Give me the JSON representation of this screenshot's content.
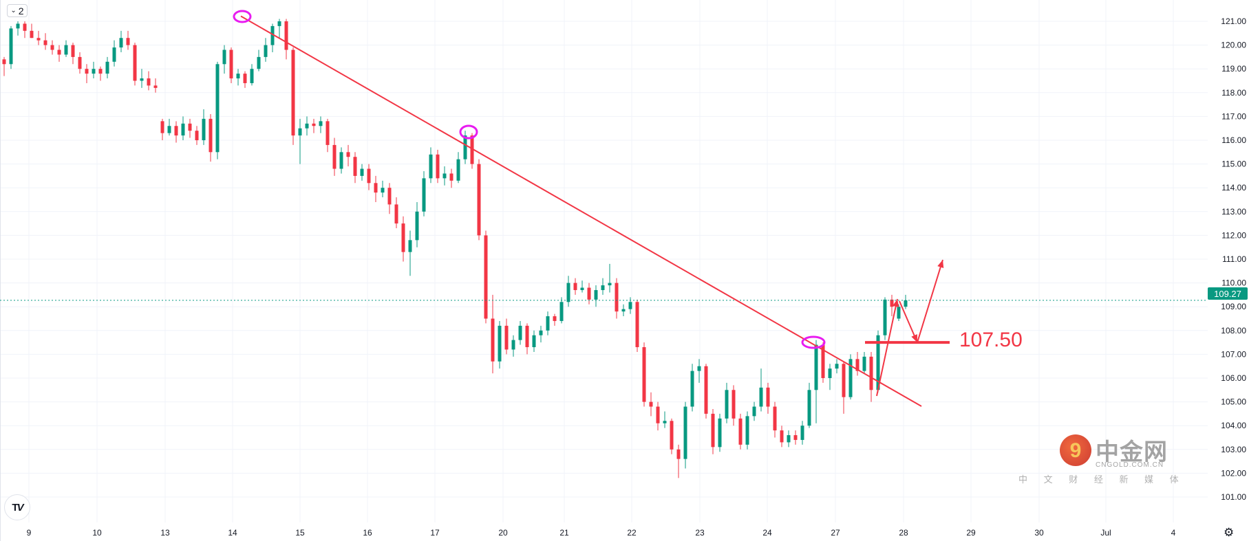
{
  "toolbar": {
    "interval_value": "2",
    "chevron": "chevron-down-icon"
  },
  "colors": {
    "up": "#089981",
    "down": "#f23645",
    "annotation": "#f23645",
    "highlight_ellipse": "#e81cf0",
    "last_price": "#089981",
    "grid": "#f0f3fa"
  },
  "last_price_label": "109.27",
  "annotation_level_label": "107.50",
  "watermark": {
    "brand": "中金网",
    "url": "CNGOLD.COM.CN",
    "tagline": "中 文 财 经 新 媒 体"
  },
  "chart_data": {
    "type": "candlestick",
    "title": "",
    "xlabel": "",
    "ylabel": "",
    "ylim": [
      100.3,
      121.1
    ],
    "grid": true,
    "x_tick_labels": [
      "9",
      "10",
      "13",
      "14",
      "15",
      "16",
      "17",
      "20",
      "21",
      "22",
      "23",
      "24",
      "27",
      "28",
      "29",
      "30",
      "Jul",
      "4"
    ],
    "y_tick_labels": [
      "101.00",
      "102.00",
      "103.00",
      "104.00",
      "105.00",
      "106.00",
      "107.00",
      "108.00",
      "109.00",
      "110.00",
      "111.00",
      "112.00",
      "113.00",
      "114.00",
      "115.00",
      "116.00",
      "117.00",
      "118.00",
      "119.00",
      "120.00",
      "121.00"
    ],
    "last_price": 109.27,
    "ohlc_fields": [
      "open",
      "high",
      "low",
      "close"
    ],
    "ohlc": [
      [
        119.4,
        119.5,
        118.7,
        119.2
      ],
      [
        119.2,
        120.8,
        119.0,
        120.7
      ],
      [
        120.7,
        121.0,
        120.4,
        120.9
      ],
      [
        120.9,
        121.0,
        120.3,
        120.6
      ],
      [
        120.6,
        120.9,
        120.3,
        120.3
      ],
      [
        120.3,
        120.6,
        120.0,
        120.2
      ],
      [
        120.2,
        120.5,
        119.8,
        120.0
      ],
      [
        120.0,
        120.2,
        119.6,
        119.8
      ],
      [
        119.8,
        120.0,
        119.3,
        119.6
      ],
      [
        119.6,
        120.2,
        119.5,
        120.0
      ],
      [
        120.0,
        120.1,
        119.2,
        119.5
      ],
      [
        119.5,
        119.7,
        118.8,
        119.0
      ],
      [
        119.0,
        119.2,
        118.4,
        118.8
      ],
      [
        118.8,
        119.3,
        118.6,
        119.0
      ],
      [
        119.0,
        119.1,
        118.5,
        118.8
      ],
      [
        118.8,
        119.5,
        118.6,
        119.3
      ],
      [
        119.3,
        120.2,
        119.1,
        119.9
      ],
      [
        119.9,
        120.6,
        119.7,
        120.3
      ],
      [
        120.3,
        120.6,
        119.8,
        120.0
      ],
      [
        120.0,
        120.1,
        118.3,
        118.5
      ],
      [
        118.5,
        119.0,
        118.2,
        118.6
      ],
      [
        118.6,
        118.9,
        118.1,
        118.3
      ],
      [
        118.3,
        118.6,
        118.0,
        118.2
      ],
      [
        116.8,
        116.9,
        116.0,
        116.3
      ],
      [
        116.3,
        116.9,
        116.2,
        116.6
      ],
      [
        116.6,
        116.8,
        115.9,
        116.2
      ],
      [
        116.2,
        117.0,
        116.0,
        116.7
      ],
      [
        116.7,
        116.9,
        116.1,
        116.4
      ],
      [
        116.4,
        116.6,
        115.8,
        116.0
      ],
      [
        116.0,
        117.3,
        115.8,
        116.9
      ],
      [
        116.9,
        117.1,
        115.1,
        115.5
      ],
      [
        115.5,
        119.3,
        115.2,
        119.2
      ],
      [
        119.2,
        120.0,
        118.8,
        119.8
      ],
      [
        119.8,
        119.9,
        118.4,
        118.6
      ],
      [
        118.6,
        119.0,
        118.3,
        118.8
      ],
      [
        118.8,
        118.9,
        118.2,
        118.4
      ],
      [
        118.4,
        119.2,
        118.3,
        119.0
      ],
      [
        119.0,
        119.8,
        118.9,
        119.5
      ],
      [
        119.5,
        120.3,
        119.3,
        120.0
      ],
      [
        120.0,
        120.9,
        119.7,
        120.8
      ],
      [
        120.8,
        121.1,
        120.3,
        121.0
      ],
      [
        121.0,
        121.1,
        119.4,
        119.8
      ],
      [
        119.8,
        119.9,
        115.8,
        116.2
      ],
      [
        116.2,
        116.9,
        115.0,
        116.5
      ],
      [
        116.5,
        117.0,
        116.2,
        116.7
      ],
      [
        116.7,
        116.9,
        116.3,
        116.6
      ],
      [
        116.6,
        117.0,
        116.3,
        116.8
      ],
      [
        116.8,
        116.9,
        115.5,
        115.8
      ],
      [
        115.8,
        116.1,
        114.5,
        114.8
      ],
      [
        114.8,
        115.7,
        114.6,
        115.5
      ],
      [
        115.5,
        115.8,
        114.9,
        115.3
      ],
      [
        115.3,
        115.5,
        114.2,
        114.5
      ],
      [
        114.5,
        115.0,
        114.3,
        114.8
      ],
      [
        114.8,
        115.0,
        113.9,
        114.2
      ],
      [
        114.2,
        114.5,
        113.4,
        113.8
      ],
      [
        113.8,
        114.3,
        113.6,
        114.0
      ],
      [
        114.0,
        114.2,
        112.9,
        113.3
      ],
      [
        113.3,
        113.6,
        112.3,
        112.5
      ],
      [
        112.5,
        112.8,
        110.9,
        111.3
      ],
      [
        111.3,
        112.2,
        110.3,
        111.8
      ],
      [
        111.8,
        113.4,
        111.5,
        113.0
      ],
      [
        113.0,
        114.7,
        112.8,
        114.4
      ],
      [
        114.4,
        115.7,
        114.2,
        115.4
      ],
      [
        115.4,
        115.6,
        114.2,
        114.4
      ],
      [
        114.4,
        114.9,
        114.1,
        114.6
      ],
      [
        114.6,
        114.8,
        114.0,
        114.3
      ],
      [
        114.3,
        115.5,
        114.2,
        115.2
      ],
      [
        115.2,
        116.4,
        115.0,
        116.2
      ],
      [
        116.2,
        116.3,
        114.8,
        115.0
      ],
      [
        115.0,
        115.2,
        111.8,
        112.0
      ],
      [
        112.0,
        112.2,
        108.3,
        108.5
      ],
      [
        108.5,
        109.5,
        106.2,
        106.7
      ],
      [
        106.7,
        108.4,
        106.4,
        108.2
      ],
      [
        108.2,
        108.5,
        107.0,
        107.2
      ],
      [
        107.2,
        107.8,
        106.9,
        107.6
      ],
      [
        107.6,
        108.4,
        107.4,
        108.2
      ],
      [
        108.2,
        108.3,
        107.0,
        107.3
      ],
      [
        107.3,
        108.0,
        107.1,
        107.8
      ],
      [
        107.8,
        108.2,
        107.5,
        108.0
      ],
      [
        108.0,
        108.8,
        107.8,
        108.6
      ],
      [
        108.6,
        108.7,
        108.2,
        108.4
      ],
      [
        108.4,
        109.4,
        108.3,
        109.2
      ],
      [
        109.2,
        110.3,
        109.0,
        110.0
      ],
      [
        110.0,
        110.2,
        109.5,
        109.7
      ],
      [
        109.7,
        110.1,
        109.6,
        109.8
      ],
      [
        109.8,
        110.0,
        109.1,
        109.3
      ],
      [
        109.3,
        109.9,
        109.0,
        109.7
      ],
      [
        109.7,
        110.2,
        109.5,
        109.9
      ],
      [
        109.9,
        110.8,
        109.6,
        110.0
      ],
      [
        110.0,
        110.2,
        108.5,
        108.8
      ],
      [
        108.8,
        109.1,
        108.6,
        108.9
      ],
      [
        108.9,
        109.4,
        108.7,
        109.2
      ],
      [
        109.2,
        109.3,
        107.1,
        107.3
      ],
      [
        107.3,
        107.5,
        104.8,
        105.0
      ],
      [
        105.0,
        105.4,
        104.4,
        104.8
      ],
      [
        104.8,
        105.0,
        103.8,
        104.1
      ],
      [
        104.1,
        104.6,
        103.9,
        104.2
      ],
      [
        104.2,
        104.3,
        102.8,
        103.0
      ],
      [
        103.0,
        103.2,
        101.8,
        102.6
      ],
      [
        102.6,
        105.0,
        102.2,
        104.8
      ],
      [
        104.8,
        106.6,
        104.6,
        106.3
      ],
      [
        106.3,
        106.8,
        105.8,
        106.5
      ],
      [
        106.5,
        106.6,
        104.3,
        104.5
      ],
      [
        104.5,
        104.7,
        102.8,
        103.1
      ],
      [
        103.1,
        104.5,
        102.9,
        104.3
      ],
      [
        104.3,
        105.8,
        104.1,
        105.5
      ],
      [
        105.5,
        105.7,
        104.0,
        104.3
      ],
      [
        104.3,
        104.5,
        103.0,
        103.2
      ],
      [
        103.2,
        104.6,
        103.0,
        104.4
      ],
      [
        104.4,
        105.0,
        104.2,
        104.8
      ],
      [
        104.8,
        106.4,
        104.6,
        105.6
      ],
      [
        105.6,
        105.8,
        104.5,
        104.8
      ],
      [
        104.8,
        105.0,
        103.5,
        103.8
      ],
      [
        103.8,
        104.0,
        103.1,
        103.3
      ],
      [
        103.3,
        103.8,
        103.1,
        103.6
      ],
      [
        103.6,
        103.8,
        103.2,
        103.4
      ],
      [
        103.4,
        104.2,
        103.2,
        104.0
      ],
      [
        104.0,
        105.8,
        103.9,
        105.5
      ],
      [
        105.5,
        107.6,
        104.1,
        107.4
      ],
      [
        107.4,
        107.5,
        105.8,
        106.0
      ],
      [
        106.0,
        106.6,
        105.5,
        106.4
      ],
      [
        106.4,
        106.8,
        106.2,
        106.6
      ],
      [
        106.6,
        106.7,
        104.5,
        105.2
      ],
      [
        105.2,
        107.0,
        105.1,
        106.8
      ],
      [
        106.8,
        107.1,
        106.1,
        106.3
      ],
      [
        106.3,
        107.1,
        106.2,
        106.9
      ],
      [
        106.9,
        107.1,
        105.0,
        105.5
      ],
      [
        105.5,
        108.0,
        105.4,
        107.8
      ],
      [
        107.8,
        109.4,
        107.6,
        109.3
      ],
      [
        109.3,
        109.5,
        108.6,
        109.0
      ],
      [
        108.5,
        109.1,
        108.4,
        109.0
      ],
      [
        109.0,
        109.5,
        108.9,
        109.27
      ]
    ],
    "annotations": {
      "trendline": {
        "from_price": 121.1,
        "to_price": 104.9
      },
      "highlighted_highs": [
        121.1,
        116.4,
        107.5
      ],
      "support_level": 107.5,
      "projected_path": [
        "rise to ~109.4",
        "pullback to 107.50",
        "rise above 111"
      ]
    }
  }
}
